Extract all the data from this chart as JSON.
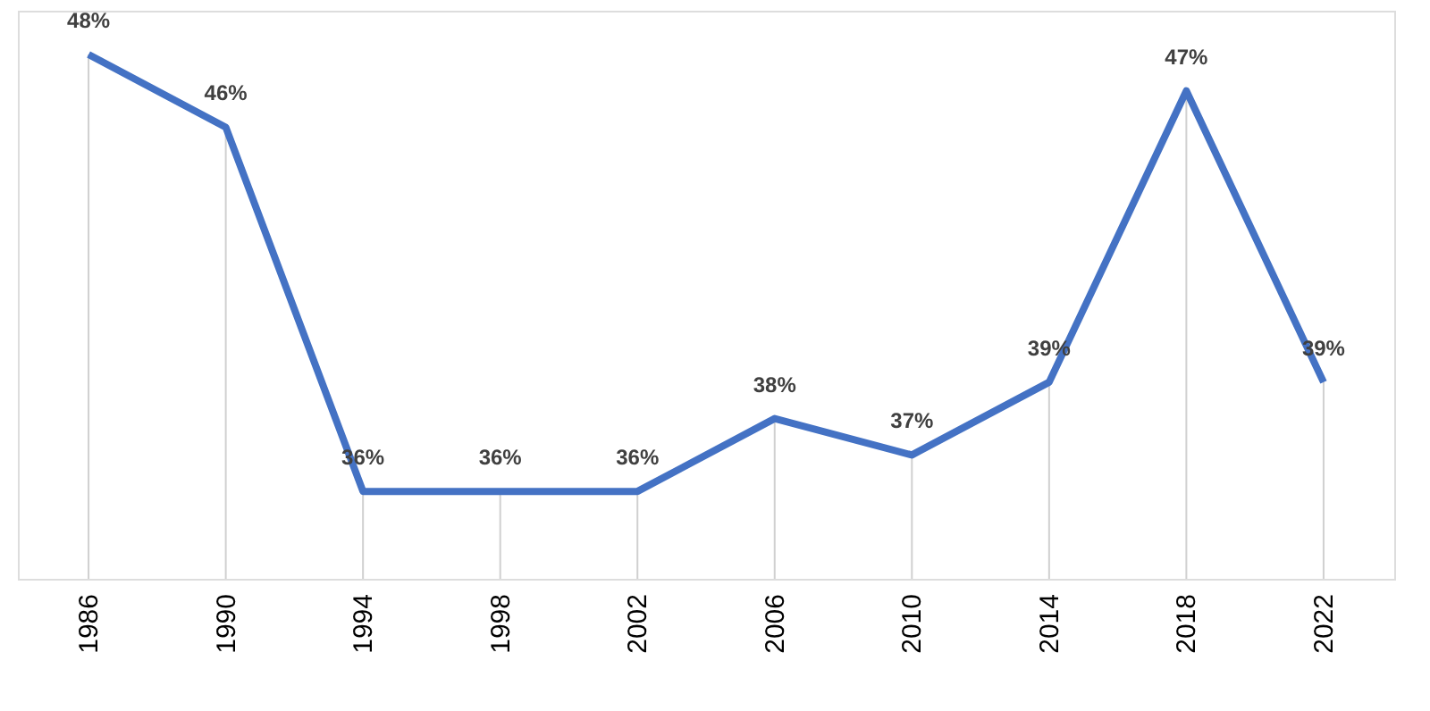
{
  "chart_data": {
    "type": "line",
    "categories": [
      "1986",
      "1990",
      "1994",
      "1998",
      "2002",
      "2006",
      "2010",
      "2014",
      "2018",
      "2022"
    ],
    "series": [
      {
        "color": "#4472c4",
        "values": [
          48,
          46,
          36,
          36,
          36,
          38,
          37,
          39,
          47,
          39
        ],
        "value_labels": [
          "48%",
          "46%",
          "36%",
          "36%",
          "36%",
          "38%",
          "37%",
          "39%",
          "47%",
          "39%"
        ]
      }
    ],
    "grid": "x",
    "line_style": "solid"
  }
}
